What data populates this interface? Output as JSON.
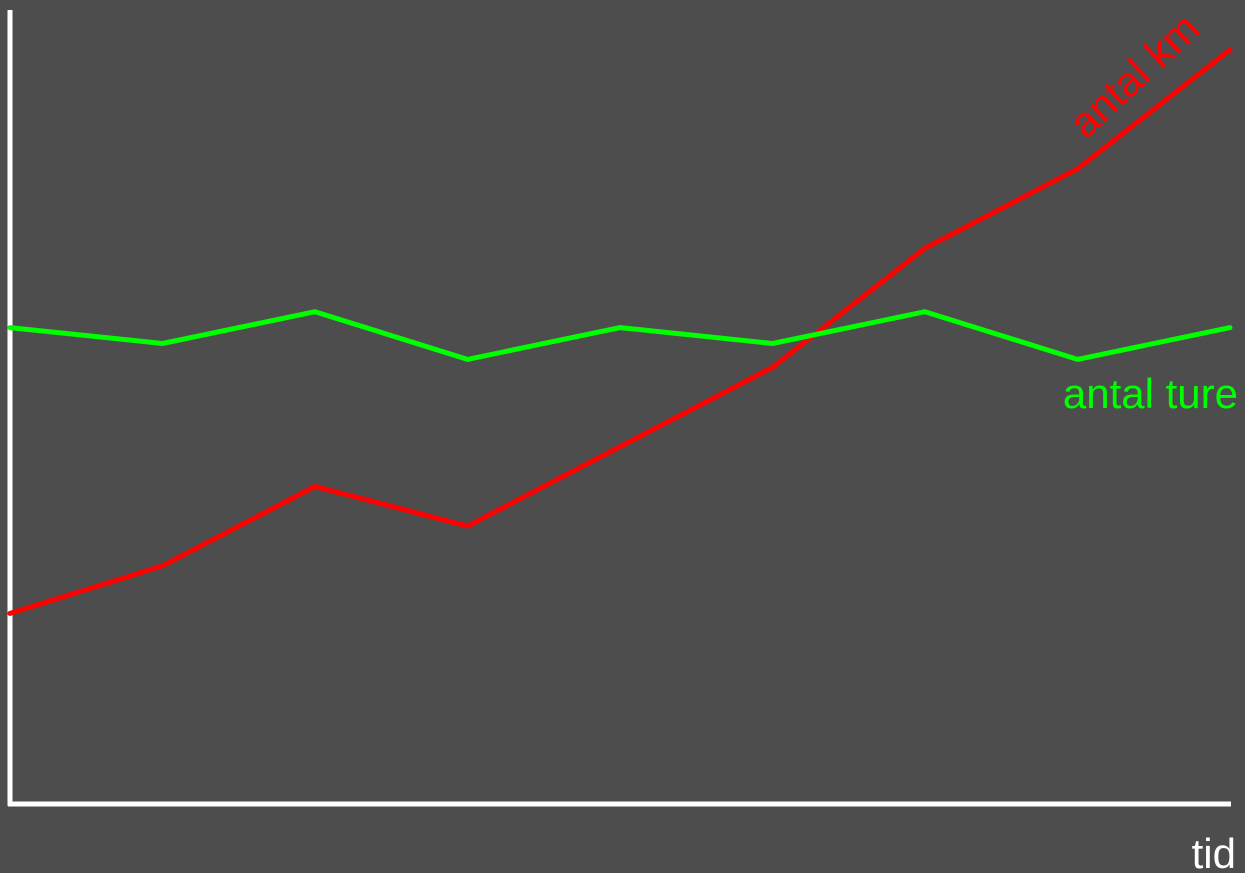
{
  "chart_data": {
    "type": "line",
    "title": "",
    "xlabel": "tid",
    "ylabel": "",
    "x": [
      0,
      1,
      2,
      3,
      4,
      5,
      6,
      7,
      8
    ],
    "xlim": [
      0,
      8
    ],
    "ylim": [
      0,
      100
    ],
    "grid": false,
    "legend": "none",
    "series": [
      {
        "name": "antal km",
        "color": "#ff0000",
        "values": [
          24,
          30,
          40,
          35,
          45,
          55,
          70,
          80,
          95
        ]
      },
      {
        "name": "antal ture",
        "color": "#00ff00",
        "values": [
          60,
          58,
          62,
          56,
          60,
          58,
          62,
          56,
          60
        ]
      }
    ]
  },
  "colors": {
    "background": "#4d4d4d",
    "axis": "#ffffff"
  }
}
